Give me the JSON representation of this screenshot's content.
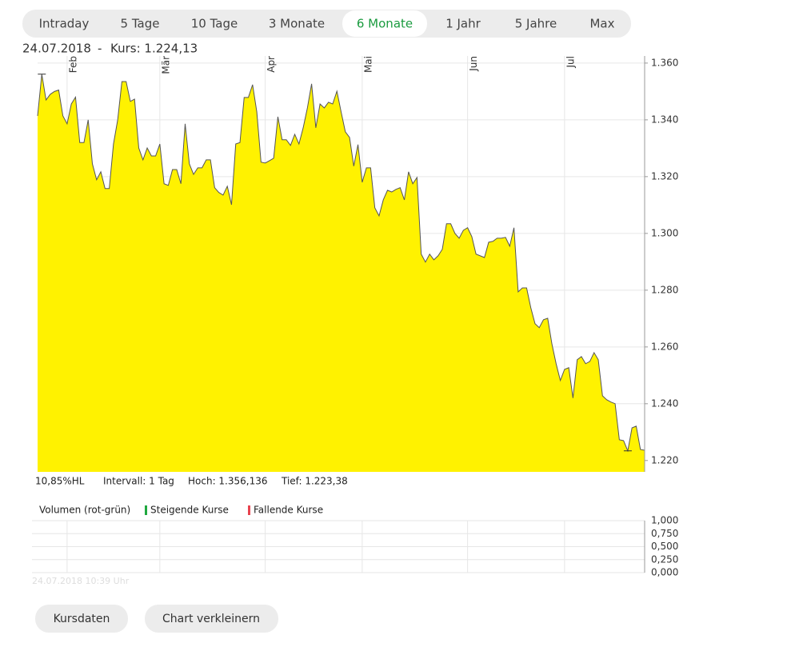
{
  "tabs": {
    "items": [
      "Intraday",
      "5 Tage",
      "10 Tage",
      "3 Monate",
      "6 Monate",
      "1 Jahr",
      "5 Jahre",
      "Max"
    ],
    "active": 4
  },
  "quote": {
    "date": "24.07.2018",
    "separator": "-",
    "price": "Kurs: 1.224,13"
  },
  "stats": [
    "10,85%HL",
    "Intervall: 1 Tag",
    "Hoch: 1.356,136",
    "Tief:  1.223,38"
  ],
  "timestamp": "24.07.2018 10:39 Uhr",
  "buttons": [
    "Kursdaten",
    "Chart verkleinern"
  ],
  "chart_data": [
    {
      "type": "area",
      "color": "#fff200",
      "line_color": "#555555",
      "grid": true,
      "categories": [
        null,
        null,
        null,
        null,
        null,
        null,
        null,
        "Feb",
        null,
        null,
        null,
        null,
        null,
        null,
        null,
        null,
        null,
        null,
        null,
        null,
        null,
        null,
        null,
        null,
        null,
        null,
        null,
        null,
        null,
        "Mär",
        null,
        null,
        null,
        null,
        null,
        null,
        null,
        null,
        null,
        null,
        null,
        null,
        null,
        null,
        null,
        null,
        null,
        null,
        null,
        null,
        null,
        null,
        null,
        null,
        "Apr",
        null,
        null,
        null,
        null,
        null,
        null,
        null,
        null,
        null,
        null,
        null,
        null,
        null,
        null,
        null,
        null,
        null,
        null,
        null,
        null,
        null,
        null,
        "Mai",
        null,
        null,
        null,
        null,
        null,
        null,
        null,
        null,
        null,
        null,
        null,
        null,
        null,
        null,
        null,
        null,
        null,
        null,
        null,
        null,
        null,
        null,
        null,
        null,
        "Jun",
        null,
        null,
        null,
        null,
        null,
        null,
        null,
        null,
        null,
        null,
        null,
        null,
        null,
        null,
        null,
        null,
        null,
        null,
        null,
        null,
        null,
        null,
        "Jul",
        null,
        null,
        null,
        null,
        null,
        null,
        null,
        null,
        null,
        null,
        null,
        null,
        null,
        null,
        null,
        null,
        null,
        null,
        null
      ],
      "values": [
        1.3414,
        1.3561,
        1.347,
        1.349,
        1.35,
        1.3505,
        1.3414,
        1.3386,
        1.3456,
        1.348,
        1.332,
        1.332,
        1.34,
        1.3245,
        1.3189,
        1.3217,
        1.3158,
        1.3158,
        1.3315,
        1.34,
        1.3535,
        1.3535,
        1.3465,
        1.3473,
        1.3301,
        1.3259,
        1.3301,
        1.3273,
        1.3273,
        1.3315,
        1.3175,
        1.3169,
        1.3225,
        1.3225,
        1.3175,
        1.3386,
        1.3245,
        1.3208,
        1.3231,
        1.3231,
        1.3259,
        1.3259,
        1.3161,
        1.3144,
        1.3135,
        1.3166,
        1.3101,
        1.3315,
        1.332,
        1.3479,
        1.3479,
        1.3524,
        1.3428,
        1.3251,
        1.3248,
        1.3256,
        1.3265,
        1.3411,
        1.333,
        1.333,
        1.331,
        1.3349,
        1.3315,
        1.3372,
        1.3442,
        1.3527,
        1.3372,
        1.3456,
        1.3442,
        1.3462,
        1.3456,
        1.3501,
        1.3428,
        1.3358,
        1.3338,
        1.3237,
        1.3313,
        1.318,
        1.3231,
        1.3231,
        1.309,
        1.3062,
        1.3118,
        1.3152,
        1.3146,
        1.3155,
        1.3161,
        1.3118,
        1.3217,
        1.3175,
        1.3197,
        1.2927,
        1.2899,
        1.2927,
        1.2907,
        1.2921,
        1.2944,
        1.3034,
        1.3034,
        1.3,
        1.2983,
        1.3011,
        1.302,
        1.2989,
        1.2927,
        1.2921,
        1.2915,
        1.2969,
        1.2972,
        1.2983,
        1.2983,
        1.2986,
        1.2955,
        1.302,
        1.2794,
        1.2808,
        1.2808,
        1.2738,
        1.2682,
        1.2668,
        1.2696,
        1.2701,
        1.2611,
        1.2541,
        1.2482,
        1.2521,
        1.2527,
        1.242,
        1.2555,
        1.2566,
        1.2541,
        1.2549,
        1.258,
        1.2555,
        1.2428,
        1.2414,
        1.2406,
        1.24,
        1.2273,
        1.227,
        1.2234,
        1.2315,
        1.2321,
        1.2239,
        1.2236
      ],
      "ylim": [
        1.216,
        1.3625
      ],
      "yticks": [
        {
          "value": 1.22,
          "label": "1.220"
        },
        {
          "value": 1.24,
          "label": "1.240"
        },
        {
          "value": 1.26,
          "label": "1.260"
        },
        {
          "value": 1.28,
          "label": "1.280"
        },
        {
          "value": 1.3,
          "label": "1.300"
        },
        {
          "value": 1.32,
          "label": "1.320"
        },
        {
          "value": 1.34,
          "label": "1.340"
        },
        {
          "value": 1.36,
          "label": "1.360"
        }
      ]
    },
    {
      "type": "bar",
      "title": "Volumen (rot-grün)",
      "series": [
        {
          "name": "Steigende Kurse",
          "color": "#1fa83f",
          "values": []
        },
        {
          "name": "Fallende Kurse",
          "color": "#e8434f",
          "values": []
        }
      ],
      "ylim": [
        0,
        1
      ],
      "yticks": [
        {
          "value": 0,
          "label": "0,000"
        },
        {
          "value": 0.25,
          "label": "0,250"
        },
        {
          "value": 0.5,
          "label": "0,500"
        },
        {
          "value": 0.75,
          "label": "0,750"
        },
        {
          "value": 1,
          "label": "1,000"
        }
      ]
    }
  ]
}
